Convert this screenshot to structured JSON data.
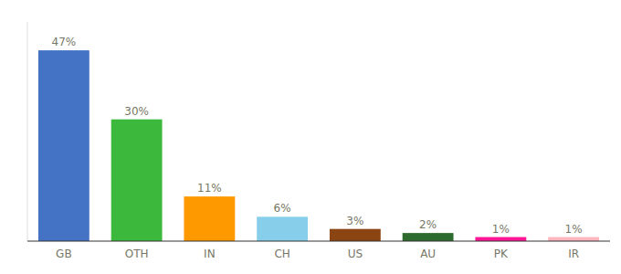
{
  "chart_data": {
    "type": "bar",
    "categories": [
      "GB",
      "OTH",
      "IN",
      "CH",
      "US",
      "AU",
      "PK",
      "IR"
    ],
    "values": [
      47,
      30,
      11,
      6,
      3,
      2,
      1,
      1
    ],
    "value_labels": [
      "47%",
      "30%",
      "11%",
      "6%",
      "3%",
      "2%",
      "1%",
      "1%"
    ],
    "colors": [
      "#4472C4",
      "#3CB93C",
      "#FF9900",
      "#87CEEB",
      "#8B4513",
      "#2D6A2D",
      "#FF1493",
      "#FFB6C1"
    ],
    "ylim": [
      0,
      54
    ],
    "data_labels": true,
    "tick_labels": "x",
    "grid": false
  }
}
